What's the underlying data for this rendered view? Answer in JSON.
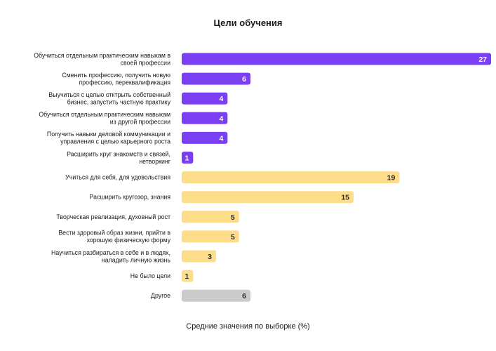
{
  "chart_data": {
    "type": "bar",
    "orientation": "horizontal",
    "title": "Цели обучения",
    "xlabel": "Средние значения по выборке (%)",
    "xlim": [
      0,
      27
    ],
    "grid": false,
    "categories": [
      "Обучиться отдельным практическим навыкам в своей профессии",
      "Сменить профессию, получить новую профессию, переквалификация",
      "Выучиться с целью отктрыть собственный бизнес, запустить частную практику",
      "Обучиться отдельным практическим навыкам из другой профессии",
      "Получить навыки деловой коммуникации и управления с целью карьерного роста",
      "Расширить круг знакомств и связей, нетворкинг",
      "Учиться для себя, для удовольствия",
      "Расширить кругозор, знания",
      "Творческая реализация, духовный рост",
      "Вести здоровый образ жизни, прийти в хорошую физическую форму",
      "Научиться разбираться в себе и в людях, наладить личную жизнь",
      "Не было цели",
      "Другое"
    ],
    "label_lines": [
      [
        "Обучиться отдельным практическим навыкам в",
        "своей профессии"
      ],
      [
        "Сменить профессию, получить новую",
        "профессию, переквалификация"
      ],
      [
        "Выучиться с целью отктрыть собственный",
        "бизнес, запустить частную практику"
      ],
      [
        "Обучиться отдельным практическим навыкам",
        "из другой профессии"
      ],
      [
        "Получить навыки деловой коммуникации и",
        "управления с целью карьерного роста"
      ],
      [
        "Расширить круг знакомств и связей,",
        "нетворкинг"
      ],
      [
        "Учиться для себя, для удовольствия"
      ],
      [
        "Расширить кругозор, знания"
      ],
      [
        "Творческая реализация, духовный рост"
      ],
      [
        "Вести здоровый образ жизни, прийти в",
        "хорошую физическую форму"
      ],
      [
        "Научиться разбираться в себе и в людях,",
        "наладить личную жизнь"
      ],
      [
        "Не было цели"
      ],
      [
        "Другое"
      ]
    ],
    "values": [
      27,
      6,
      4,
      4,
      4,
      1,
      19,
      15,
      5,
      5,
      3,
      1,
      6
    ],
    "bar_colors": [
      "#7a3ff2",
      "#7a3ff2",
      "#7a3ff2",
      "#7a3ff2",
      "#7a3ff2",
      "#7a3ff2",
      "#fedd8a",
      "#fedd8a",
      "#fedd8a",
      "#fedd8a",
      "#fedd8a",
      "#fedd8a",
      "#cbcbcb"
    ],
    "value_label_colors": [
      "#ffffff",
      "#ffffff",
      "#ffffff",
      "#ffffff",
      "#ffffff",
      "#ffffff",
      "#2b2b2b",
      "#2b2b2b",
      "#2b2b2b",
      "#2b2b2b",
      "#2b2b2b",
      "#2b2b2b",
      "#2b2b2b"
    ]
  }
}
